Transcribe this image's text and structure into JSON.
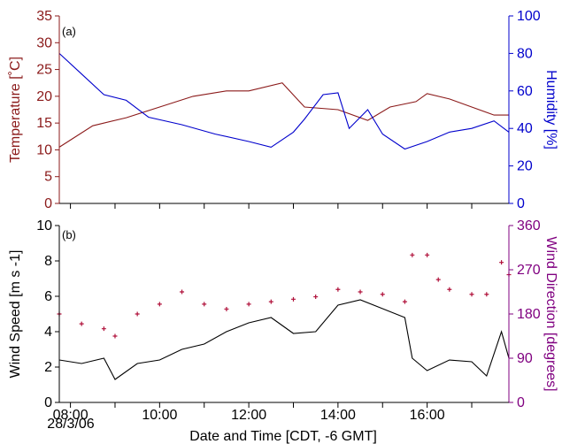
{
  "chart_data": [
    {
      "id": "a",
      "type": "line",
      "panel_label": "(a)",
      "x_range": [
        "07:45",
        "17:50"
      ],
      "grid": false,
      "series": [
        {
          "name": "Temperature",
          "axis": "left",
          "color": "#8b1a1a",
          "points": [
            [
              "07:45",
              10.5
            ],
            [
              "08:30",
              14.5
            ],
            [
              "09:15",
              16.0
            ],
            [
              "10:00",
              18.0
            ],
            [
              "10:45",
              20.0
            ],
            [
              "11:30",
              21.0
            ],
            [
              "12:00",
              21.0
            ],
            [
              "12:45",
              22.5
            ],
            [
              "13:15",
              18.0
            ],
            [
              "14:00",
              17.5
            ],
            [
              "14:40",
              15.5
            ],
            [
              "15:10",
              18.0
            ],
            [
              "15:45",
              19.0
            ],
            [
              "16:00",
              20.5
            ],
            [
              "16:30",
              19.5
            ],
            [
              "17:00",
              18.0
            ],
            [
              "17:30",
              16.5
            ],
            [
              "17:50",
              16.5
            ]
          ]
        },
        {
          "name": "Humidity",
          "axis": "right",
          "color": "#0000cc",
          "points": [
            [
              "07:45",
              80.0
            ],
            [
              "08:15",
              69.0
            ],
            [
              "08:45",
              58.0
            ],
            [
              "09:15",
              55.0
            ],
            [
              "09:45",
              46.0
            ],
            [
              "10:30",
              42.0
            ],
            [
              "11:15",
              37.0
            ],
            [
              "12:00",
              33.0
            ],
            [
              "12:30",
              30.0
            ],
            [
              "13:00",
              38.0
            ],
            [
              "13:15",
              45.0
            ],
            [
              "13:40",
              58.0
            ],
            [
              "14:00",
              59.0
            ],
            [
              "14:15",
              40.0
            ],
            [
              "14:40",
              50.0
            ],
            [
              "15:00",
              37.0
            ],
            [
              "15:30",
              29.0
            ],
            [
              "16:00",
              33.0
            ],
            [
              "16:30",
              38.0
            ],
            [
              "17:00",
              40.0
            ],
            [
              "17:30",
              44.0
            ],
            [
              "17:50",
              38.0
            ]
          ]
        }
      ],
      "left_axis": {
        "label": "Temperature [˚C]",
        "range": [
          0,
          35
        ],
        "ticks": [
          "0",
          "5",
          "10",
          "15",
          "20",
          "25",
          "30",
          "35"
        ],
        "color": "#8b1a1a"
      },
      "right_axis": {
        "label": "Humidity [%]",
        "range": [
          0,
          100
        ],
        "ticks": [
          "0",
          "20",
          "40",
          "60",
          "80",
          "100"
        ],
        "color": "#0000cc"
      }
    },
    {
      "id": "b",
      "type": "line",
      "panel_label": "(b)",
      "x_range": [
        "07:45",
        "17:50"
      ],
      "grid": false,
      "series": [
        {
          "name": "Wind Speed",
          "axis": "left",
          "type": "line",
          "color": "#000000",
          "points": [
            [
              "07:45",
              2.4
            ],
            [
              "08:15",
              2.2
            ],
            [
              "08:45",
              2.5
            ],
            [
              "09:00",
              1.3
            ],
            [
              "09:30",
              2.2
            ],
            [
              "10:00",
              2.4
            ],
            [
              "10:30",
              3.0
            ],
            [
              "11:00",
              3.3
            ],
            [
              "11:30",
              4.0
            ],
            [
              "12:00",
              4.5
            ],
            [
              "12:30",
              4.8
            ],
            [
              "13:00",
              3.9
            ],
            [
              "13:30",
              4.0
            ],
            [
              "14:00",
              5.5
            ],
            [
              "14:30",
              5.8
            ],
            [
              "15:00",
              5.3
            ],
            [
              "15:30",
              4.8
            ],
            [
              "15:40",
              2.5
            ],
            [
              "16:00",
              1.8
            ],
            [
              "16:30",
              2.4
            ],
            [
              "17:00",
              2.3
            ],
            [
              "17:20",
              1.5
            ],
            [
              "17:40",
              4.0
            ],
            [
              "17:50",
              2.5
            ]
          ]
        },
        {
          "name": "Wind Direction",
          "axis": "right",
          "type": "scatter",
          "color": "#b0103a",
          "points": [
            [
              "07:45",
              180
            ],
            [
              "08:15",
              160
            ],
            [
              "08:45",
              150
            ],
            [
              "09:00",
              135
            ],
            [
              "09:30",
              180
            ],
            [
              "10:00",
              200
            ],
            [
              "10:30",
              225
            ],
            [
              "11:00",
              200
            ],
            [
              "11:30",
              190
            ],
            [
              "12:00",
              200
            ],
            [
              "12:30",
              205
            ],
            [
              "13:00",
              210
            ],
            [
              "13:30",
              215
            ],
            [
              "14:00",
              230
            ],
            [
              "14:30",
              225
            ],
            [
              "15:00",
              220
            ],
            [
              "15:30",
              205
            ],
            [
              "15:40",
              300
            ],
            [
              "16:00",
              300
            ],
            [
              "16:15",
              250
            ],
            [
              "16:30",
              230
            ],
            [
              "17:00",
              220
            ],
            [
              "17:20",
              220
            ],
            [
              "17:40",
              285
            ],
            [
              "17:50",
              260
            ]
          ]
        }
      ],
      "left_axis": {
        "label": "Wind Speed [m s -1]",
        "range": [
          0,
          10
        ],
        "ticks": [
          "0",
          "2",
          "4",
          "6",
          "8",
          "10"
        ],
        "color": "#000000"
      },
      "right_axis": {
        "label": "Wind Direction [degrees]",
        "range": [
          0,
          360
        ],
        "ticks": [
          "0",
          "90",
          "180",
          "270",
          "360"
        ],
        "color": "#800080"
      }
    }
  ],
  "x_axis": {
    "title": "Date and Time [CDT, -6 GMT]",
    "ticks": [
      "08:00",
      "10:00",
      "12:00",
      "14:00",
      "16:00"
    ],
    "date_label": "28/3/06"
  }
}
